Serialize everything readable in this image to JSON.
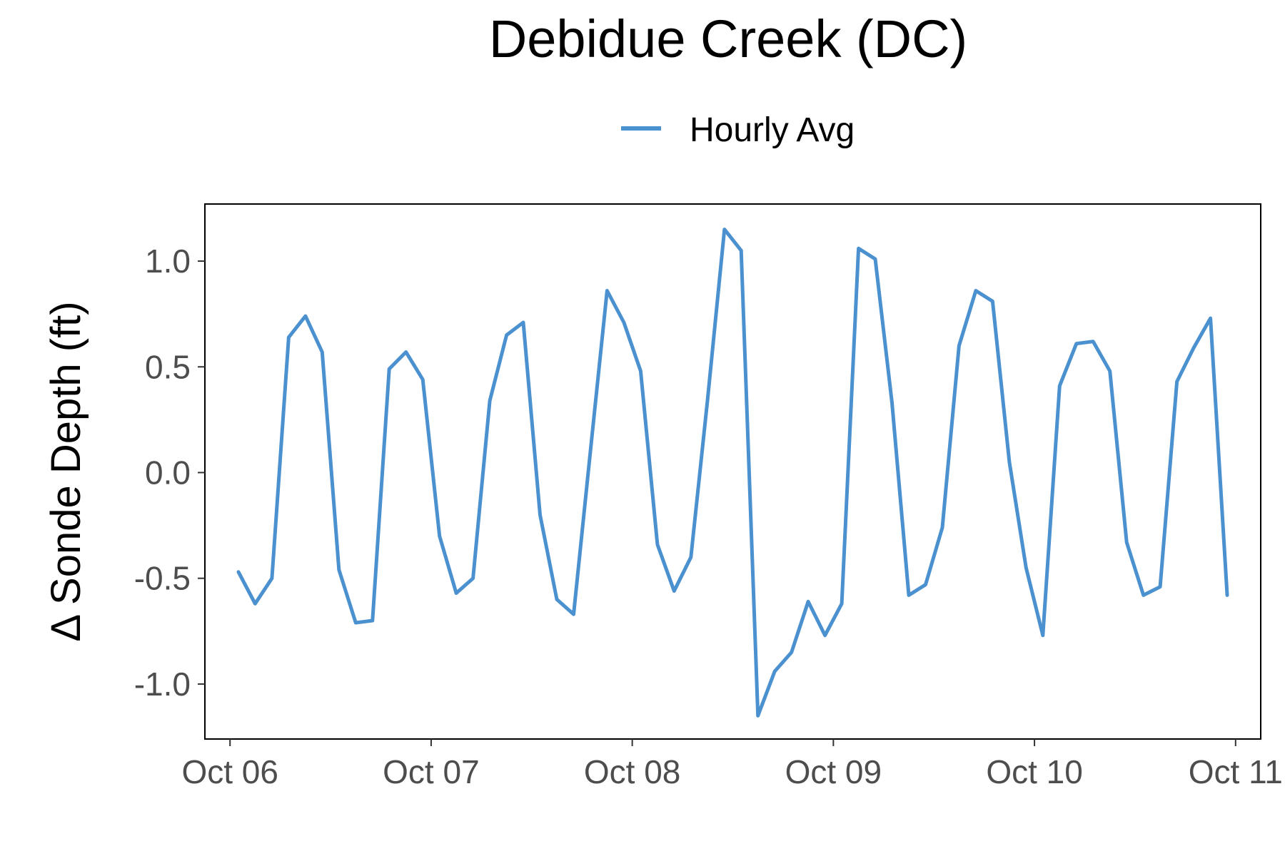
{
  "chart_data": {
    "type": "line",
    "title": "Debidue Creek (DC)",
    "xlabel": "",
    "ylabel": "Δ Sonde Depth (ft)",
    "legend": {
      "position": "top-center",
      "entries": [
        "Hourly Avg"
      ]
    },
    "grid": false,
    "x_tick_labels": [
      "Oct 06",
      "Oct 07",
      "Oct 08",
      "Oct 09",
      "Oct 10",
      "Oct 11"
    ],
    "y_tick_labels": [
      "-1.0",
      "-0.5",
      "0.0",
      "0.5",
      "1.0"
    ],
    "y_ticks": [
      -1.0,
      -0.5,
      0.0,
      0.5,
      1.0
    ],
    "xlim": [
      "Oct 05 21:00",
      "Oct 11 03:00"
    ],
    "ylim": [
      -1.26,
      1.27
    ],
    "colors": {
      "line": "#4b91cf"
    },
    "series": [
      {
        "name": "Hourly Avg",
        "x": [
          "Oct 06 01:00",
          "Oct 06 03:00",
          "Oct 06 05:00",
          "Oct 06 07:00",
          "Oct 06 09:00",
          "Oct 06 11:00",
          "Oct 06 13:00",
          "Oct 06 15:00",
          "Oct 06 17:00",
          "Oct 06 19:00",
          "Oct 06 21:00",
          "Oct 06 23:00",
          "Oct 07 01:00",
          "Oct 07 03:00",
          "Oct 07 05:00",
          "Oct 07 07:00",
          "Oct 07 09:00",
          "Oct 07 11:00",
          "Oct 07 13:00",
          "Oct 07 15:00",
          "Oct 07 17:00",
          "Oct 07 19:00",
          "Oct 07 21:00",
          "Oct 07 23:00",
          "Oct 08 01:00",
          "Oct 08 03:00",
          "Oct 08 05:00",
          "Oct 08 07:00",
          "Oct 08 09:00",
          "Oct 08 11:00",
          "Oct 08 13:00",
          "Oct 08 15:00",
          "Oct 08 17:00",
          "Oct 08 19:00",
          "Oct 08 21:00",
          "Oct 08 23:00",
          "Oct 09 01:00",
          "Oct 09 03:00",
          "Oct 09 05:00",
          "Oct 09 07:00",
          "Oct 09 09:00",
          "Oct 09 11:00",
          "Oct 09 13:00",
          "Oct 09 15:00",
          "Oct 09 17:00",
          "Oct 09 19:00",
          "Oct 09 21:00",
          "Oct 09 23:00",
          "Oct 10 01:00",
          "Oct 10 03:00",
          "Oct 10 05:00",
          "Oct 10 07:00",
          "Oct 10 09:00",
          "Oct 10 11:00",
          "Oct 10 13:00",
          "Oct 10 15:00",
          "Oct 10 17:00",
          "Oct 10 19:00",
          "Oct 10 21:00",
          "Oct 10 23:00"
        ],
        "values": [
          -0.47,
          -0.62,
          -0.5,
          0.64,
          0.74,
          0.57,
          -0.46,
          -0.71,
          -0.7,
          0.49,
          0.57,
          0.44,
          -0.3,
          -0.57,
          -0.5,
          0.34,
          0.65,
          0.71,
          -0.2,
          -0.6,
          -0.67,
          0.1,
          0.86,
          0.71,
          0.48,
          -0.34,
          -0.56,
          -0.4,
          0.35,
          1.15,
          1.05,
          -1.15,
          -0.94,
          -0.85,
          -0.61,
          -0.77,
          -0.62,
          1.06,
          1.01,
          0.33,
          -0.58,
          -0.53,
          -0.26,
          0.6,
          0.86,
          0.81,
          0.05,
          -0.45,
          -0.77,
          0.41,
          0.61,
          0.62,
          0.48,
          -0.33,
          -0.58,
          -0.54,
          0.43,
          0.59,
          0.73,
          -0.58
        ]
      }
    ]
  }
}
